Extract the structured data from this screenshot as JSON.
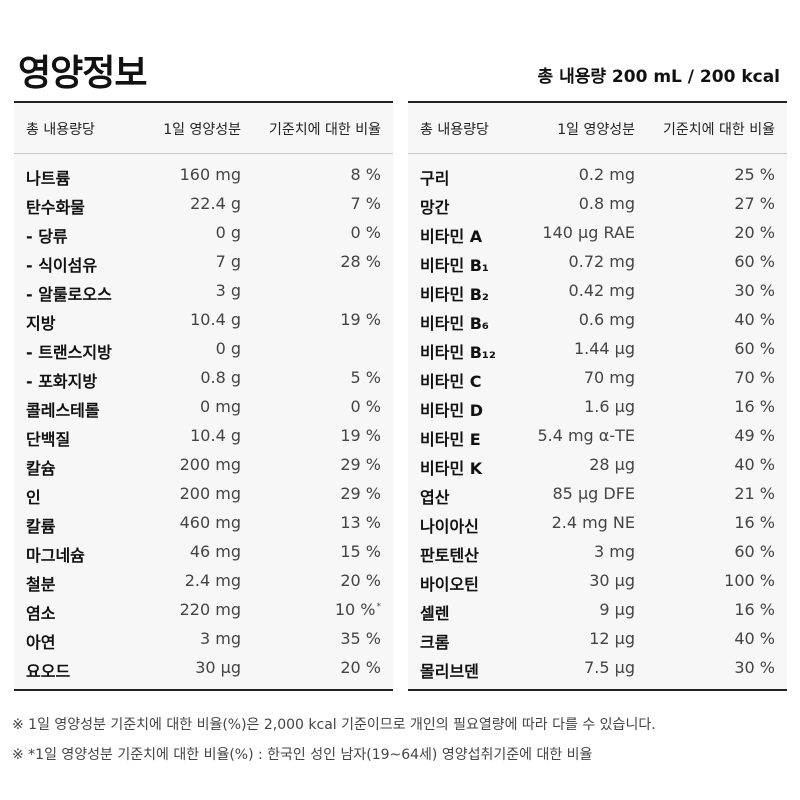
{
  "title": "영양정보",
  "total": "총 내용량 200 mL /  200 kcal",
  "headers": {
    "col1": "총 내용량당",
    "col2": "1일 영양성분",
    "col3": "기준치에 대한 비율"
  },
  "left_rows": [
    {
      "name": "나트륨",
      "amount": "160 mg",
      "percent": "8 %"
    },
    {
      "name": "탄수화물",
      "amount": "22.4 g",
      "percent": "7 %"
    },
    {
      "name": "-   당류",
      "amount": "0 g",
      "percent": "0 %"
    },
    {
      "name": "-   식이섬유",
      "amount": "7 g",
      "percent": "28 %"
    },
    {
      "name": "-   알룰로오스",
      "amount": "3 g",
      "percent": ""
    },
    {
      "name": "지방",
      "amount": "10.4 g",
      "percent": "19 %"
    },
    {
      "name": "-   트랜스지방",
      "amount": "0 g",
      "percent": ""
    },
    {
      "name": "-   포화지방",
      "amount": "0.8 g",
      "percent": "5 %"
    },
    {
      "name": "콜레스테롤",
      "amount": "0 mg",
      "percent": "0 %"
    },
    {
      "name": "단백질",
      "amount": "10.4 g",
      "percent": "19 %"
    },
    {
      "name": "칼슘",
      "amount": "200 mg",
      "percent": "29 %"
    },
    {
      "name": "인",
      "amount": "200 mg",
      "percent": "29 %"
    },
    {
      "name": "칼륨",
      "amount": "460 mg",
      "percent": "13 %"
    },
    {
      "name": "마그네슘",
      "amount": "46 mg",
      "percent": "15 %"
    },
    {
      "name": "철분",
      "amount": "2.4 mg",
      "percent": "20 %"
    },
    {
      "name": "염소",
      "amount": "220 mg",
      "percent": "10 %",
      "mark": "*"
    },
    {
      "name": "아연",
      "amount": "3 mg",
      "percent": "35 %"
    },
    {
      "name": "요오드",
      "amount": "30 μg",
      "percent": "20 %"
    }
  ],
  "right_rows": [
    {
      "name": "구리",
      "amount": "0.2 mg",
      "percent": "25 %"
    },
    {
      "name": "망간",
      "amount": "0.8 mg",
      "percent": "27 %"
    },
    {
      "name": "비타민 A",
      "amount": "140 μg RAE",
      "percent": "20 %"
    },
    {
      "name": "비타민 B₁",
      "amount": "0.72 mg",
      "percent": "60 %"
    },
    {
      "name": "비타민 B₂",
      "amount": "0.42 mg",
      "percent": "30 %"
    },
    {
      "name": "비타민 B₆",
      "amount": "0.6 mg",
      "percent": "40 %"
    },
    {
      "name": "비타민 B₁₂",
      "amount": "1.44 μg",
      "percent": "60 %"
    },
    {
      "name": "비타민 C",
      "amount": "70 mg",
      "percent": "70 %"
    },
    {
      "name": "비타민 D",
      "amount": "1.6 μg",
      "percent": "16 %"
    },
    {
      "name": "비타민 E",
      "amount": "5.4 mg α-TE",
      "percent": "49 %"
    },
    {
      "name": "비타민 K",
      "amount": "28 μg",
      "percent": "40 %"
    },
    {
      "name": "엽산",
      "amount": "85 μg DFE",
      "percent": "21 %"
    },
    {
      "name": "나이아신",
      "amount": "2.4 mg NE",
      "percent": "16 %"
    },
    {
      "name": "판토텐산",
      "amount": "3 mg",
      "percent": "60 %"
    },
    {
      "name": "바이오틴",
      "amount": "30 μg",
      "percent": "100 %"
    },
    {
      "name": "셀렌",
      "amount": "9 μg",
      "percent": "16 %"
    },
    {
      "name": "크롬",
      "amount": "12 μg",
      "percent": "40 %"
    },
    {
      "name": "몰리브덴",
      "amount": "7.5 μg",
      "percent": "30 %"
    }
  ],
  "notes": [
    "※ 1일 영양성분 기준치에 대한 비율(%)은 2,000 kcal 기준이므로 개인의 필요열량에 따라 다를 수 있습니다.",
    "※ *1일 영양성분 기준치에 대한 비율(%) : 한국인 성인 남자(19~64세) 영양섭취기준에 대한 비율"
  ]
}
